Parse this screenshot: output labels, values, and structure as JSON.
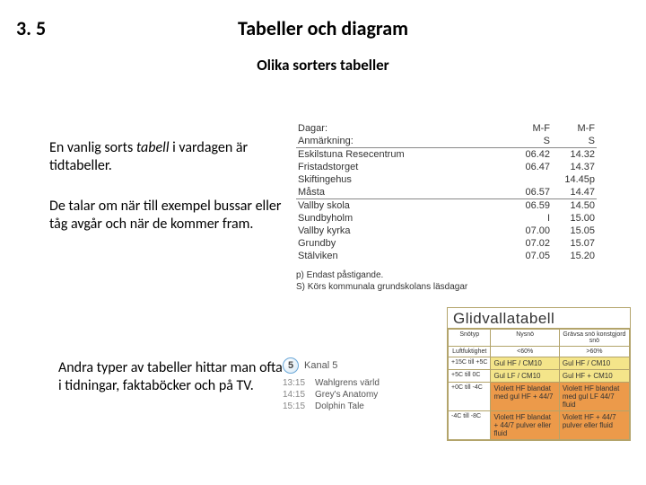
{
  "section_number": "3. 5",
  "title": "Tabeller och diagram",
  "subtitle": "Olika sorters tabeller",
  "para1_a": "En vanlig sorts ",
  "para1_italic": "tabell",
  "para1_b": " i vardagen är tidtabeller.",
  "para2": "De talar om när till exempel bussar eller tåg avgår och när de kommer fram.",
  "para3": "Andra typer av tabeller hittar man ofta i tidningar, faktaböcker och på TV.",
  "timetable": {
    "header": {
      "col0": "Dagar:",
      "col1": "M-F",
      "col2": "M-F"
    },
    "note_row": {
      "col0": "Anmärkning:",
      "col1": "S",
      "col2": "S"
    },
    "rows": [
      {
        "stop": "Eskilstuna Resecentrum",
        "t1": "06.42",
        "t2": "14.32"
      },
      {
        "stop": "Fristadstorget",
        "t1": "06.47",
        "t2": "14.37"
      },
      {
        "stop": "Skiftingehus",
        "t1": "",
        "t2": "14.45p"
      },
      {
        "stop": "Måsta",
        "t1": "06.57",
        "t2": "14.47"
      }
    ],
    "rows2": [
      {
        "stop": "Vallby skola",
        "t1": "06.59",
        "t2": "14.50"
      },
      {
        "stop": "Sundbyholm",
        "t1": "I",
        "t2": "15.00"
      },
      {
        "stop": "Vallby kyrka",
        "t1": "07.00",
        "t2": "15.05"
      },
      {
        "stop": "Grundby",
        "t1": "07.02",
        "t2": "15.07"
      },
      {
        "stop": "Stälviken",
        "t1": "07.05",
        "t2": "15.20"
      }
    ],
    "note_p": "p) Endast påstigande.",
    "note_s": "S) Körs kommunala grundskolans läsdagar"
  },
  "tv": {
    "channel_num": "5",
    "channel_name": "Kanal 5",
    "rows": [
      {
        "t": "13:15",
        "p": "Wahlgrens värld"
      },
      {
        "t": "14:15",
        "p": "Grey's Anatomy"
      },
      {
        "t": "15:15",
        "p": "Dolphin Tale"
      }
    ]
  },
  "wax": {
    "title": "Glidvallatabell",
    "col1": "Snötyp",
    "col2_a": "Nysnö",
    "col2_b": "Grävsa snö konstgjord snö",
    "row_h": "Luftfuktighet",
    "h1": "<60%",
    "h2": ">60%",
    "rows": [
      {
        "lab": "+15C till +5C",
        "c1": "Gul HF / CM10",
        "c2": "Gul HF / CM10",
        "cls": "yellow"
      },
      {
        "lab": "+5C till 0C",
        "c1": "Gul LF / CM10",
        "c2": "Gul HF + CM10",
        "cls": "yellow"
      },
      {
        "lab": "+0C till -4C",
        "c1": "Violett HF blandat med gul HF + 44/7",
        "c2": "Violett HF blandat med gul LF 44/7 fluid",
        "cls": "orange"
      },
      {
        "lab": "-4C till -8C",
        "c1": "Violett HF blandat + 44/7 pulver eller fluid",
        "c2": "Violett HF + 44/7 pulver eller fluid",
        "cls": "orange"
      }
    ]
  }
}
